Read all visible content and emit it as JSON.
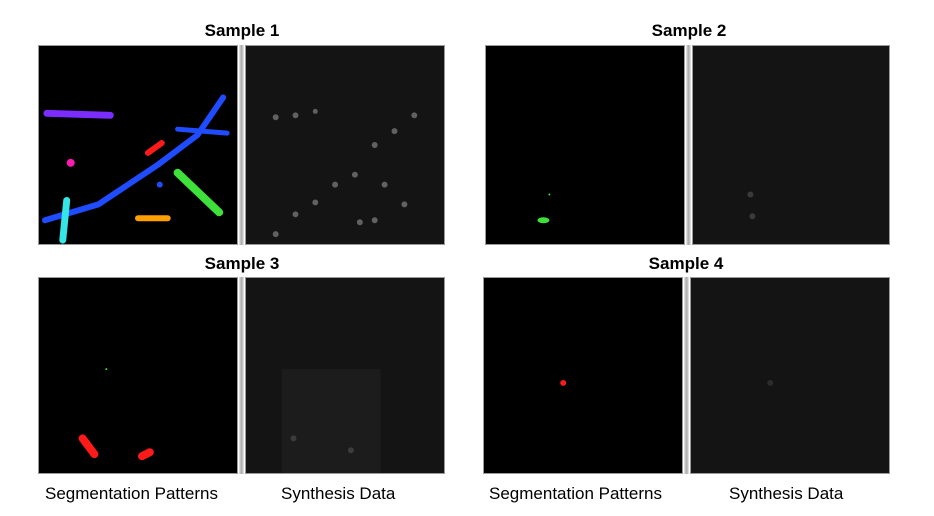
{
  "samples": [
    {
      "title": "Sample 1"
    },
    {
      "title": "Sample 2"
    },
    {
      "title": "Sample 3"
    },
    {
      "title": "Sample 4"
    }
  ],
  "captions": {
    "segmentation": "Segmentation Patterns",
    "synthesis": "Synthesis Data"
  },
  "colors": {
    "blue": "#1f4cff",
    "purple": "#7b2cff",
    "cyan": "#35e6e6",
    "green": "#3ee03a",
    "red": "#ff1a1a",
    "magenta": "#ff1ab0",
    "orange": "#ffa000"
  }
}
